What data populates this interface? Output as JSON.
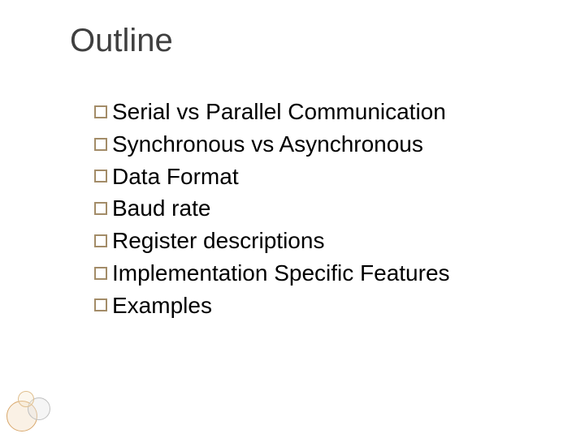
{
  "slide": {
    "title": "Outline",
    "title_color": "#3f3f3f",
    "title_fontsize": 40,
    "body_fontsize": 28,
    "body_color": "#000000",
    "bullet_border_color": "#a38c68",
    "background_color": "#ffffff",
    "items": [
      "Serial vs Parallel Communication",
      "Synchronous vs Asynchronous",
      "Data Format",
      "Baud rate",
      "Register descriptions",
      "Implementation Specific Features",
      "Examples"
    ]
  },
  "decoration": {
    "circles": [
      {
        "color": "#d9a86c",
        "fill": "rgba(239,210,170,0.3)"
      },
      {
        "color": "#c0c0c0",
        "fill": "rgba(230,230,230,0.4)"
      },
      {
        "color": "#e0c090",
        "fill": "rgba(245,230,200,0.3)"
      }
    ]
  }
}
